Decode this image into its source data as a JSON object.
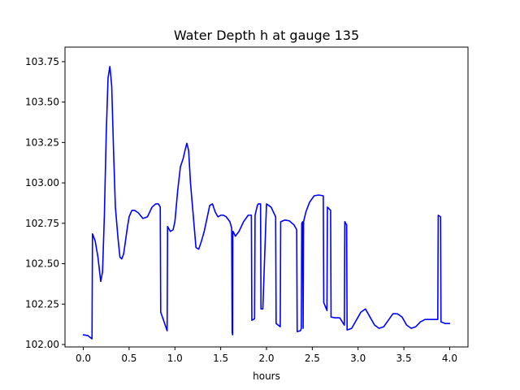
{
  "chart_data": {
    "type": "line",
    "title": "Water Depth h at gauge 135",
    "xlabel": "hours",
    "ylabel": "",
    "xlim": [
      -0.2,
      4.2
    ],
    "ylim": [
      101.985,
      103.84
    ],
    "xticks": [
      0.0,
      0.5,
      1.0,
      1.5,
      2.0,
      2.5,
      3.0,
      3.5,
      4.0
    ],
    "xtick_labels": [
      "0.0",
      "0.5",
      "1.0",
      "1.5",
      "2.0",
      "2.5",
      "3.0",
      "3.5",
      "4.0"
    ],
    "yticks": [
      102.0,
      102.25,
      102.5,
      102.75,
      103.0,
      103.25,
      103.5,
      103.75
    ],
    "ytick_labels": [
      "102.00",
      "102.25",
      "102.50",
      "102.75",
      "103.00",
      "103.25",
      "103.50",
      "103.75"
    ],
    "grid": false,
    "series": [
      {
        "color": "#0000ff",
        "x": [
          0.0,
          0.05,
          0.095,
          0.1,
          0.13,
          0.16,
          0.19,
          0.21,
          0.23,
          0.25,
          0.27,
          0.29,
          0.31,
          0.33,
          0.35,
          0.38,
          0.4,
          0.42,
          0.44,
          0.46,
          0.48,
          0.5,
          0.53,
          0.56,
          0.6,
          0.65,
          0.7,
          0.75,
          0.79,
          0.82,
          0.84,
          0.845,
          0.87,
          0.9,
          0.915,
          0.92,
          0.95,
          0.98,
          1.0,
          1.03,
          1.06,
          1.09,
          1.11,
          1.13,
          1.15,
          1.17,
          1.2,
          1.23,
          1.26,
          1.29,
          1.32,
          1.35,
          1.38,
          1.41,
          1.44,
          1.47,
          1.5,
          1.53,
          1.56,
          1.6,
          1.62,
          1.625,
          1.63,
          1.632,
          1.635,
          1.66,
          1.7,
          1.75,
          1.8,
          1.835,
          1.84,
          1.87,
          1.875,
          1.9,
          1.91,
          1.935,
          1.94,
          1.96,
          2.0,
          2.05,
          2.1,
          2.105,
          2.15,
          2.155,
          2.2,
          2.25,
          2.3,
          2.33,
          2.335,
          2.37,
          2.38,
          2.385,
          2.395,
          2.4,
          2.405,
          2.43,
          2.47,
          2.52,
          2.57,
          2.62,
          2.625,
          2.66,
          2.665,
          2.7,
          2.705,
          2.75,
          2.8,
          2.85,
          2.855,
          2.875,
          2.88,
          2.93,
          2.98,
          3.03,
          3.08,
          3.13,
          3.18,
          3.23,
          3.28,
          3.33,
          3.38,
          3.43,
          3.48,
          3.53,
          3.58,
          3.63,
          3.68,
          3.73,
          3.78,
          3.83,
          3.87,
          3.875,
          3.9,
          3.905,
          3.95,
          4.0
        ],
        "y": [
          102.06,
          102.055,
          102.035,
          102.685,
          102.64,
          102.54,
          102.39,
          102.45,
          102.8,
          103.3,
          103.65,
          103.72,
          103.6,
          103.2,
          102.85,
          102.65,
          102.54,
          102.53,
          102.56,
          102.64,
          102.72,
          102.79,
          102.83,
          102.83,
          102.815,
          102.78,
          102.79,
          102.85,
          102.87,
          102.87,
          102.85,
          102.2,
          102.16,
          102.11,
          102.085,
          102.73,
          102.7,
          102.71,
          102.76,
          102.95,
          103.1,
          103.15,
          103.2,
          103.245,
          103.2,
          103.0,
          102.8,
          102.6,
          102.59,
          102.64,
          102.7,
          102.78,
          102.86,
          102.87,
          102.82,
          102.79,
          102.8,
          102.8,
          102.79,
          102.76,
          102.72,
          102.075,
          102.06,
          102.7,
          102.7,
          102.67,
          102.7,
          102.76,
          102.8,
          102.8,
          102.15,
          102.16,
          102.8,
          102.86,
          102.87,
          102.87,
          102.22,
          102.22,
          102.87,
          102.85,
          102.79,
          102.13,
          102.11,
          102.76,
          102.77,
          102.765,
          102.74,
          102.71,
          102.08,
          102.085,
          102.1,
          102.75,
          102.76,
          102.1,
          102.76,
          102.82,
          102.88,
          102.92,
          102.925,
          102.92,
          102.26,
          102.21,
          102.85,
          102.83,
          102.17,
          102.165,
          102.165,
          102.12,
          102.76,
          102.74,
          102.09,
          102.1,
          102.15,
          102.2,
          102.22,
          102.17,
          102.12,
          102.1,
          102.11,
          102.15,
          102.19,
          102.19,
          102.17,
          102.12,
          102.1,
          102.11,
          102.14,
          102.155,
          102.155,
          102.155,
          102.155,
          102.8,
          102.79,
          102.14,
          102.13,
          102.13
        ]
      }
    ]
  }
}
